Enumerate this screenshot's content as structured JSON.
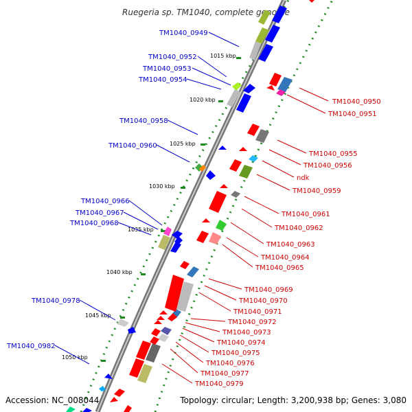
{
  "map": {
    "title": "Ruegeria sp. TM1040, complete genome",
    "footer_left": "Accession: NC_008044",
    "footer_right": "Topology: circular; Length: 3,200,938 bp; Genes: 3,080",
    "colors": {
      "forward_label": "#0000cc",
      "reverse_label": "#cc0000",
      "backbone": "#888888",
      "forward_feature": "#0000ff",
      "reverse_feature": "#ff0000"
    }
  },
  "ticks": [
    {
      "label": "1015 kbp"
    },
    {
      "label": "1020 kbp"
    },
    {
      "label": "1025 kbp"
    },
    {
      "label": "1030 kbp"
    },
    {
      "label": "1035 kbp"
    },
    {
      "label": "1040 kbp"
    },
    {
      "label": "1045 kbp"
    },
    {
      "label": "1050 kbp"
    }
  ],
  "genes_left": [
    {
      "label": "TM1040_0949"
    },
    {
      "label": "TM1040_0952"
    },
    {
      "label": "TM1040_0953"
    },
    {
      "label": "TM1040_0954"
    },
    {
      "label": "TM1040_0958"
    },
    {
      "label": "TM1040_0960"
    },
    {
      "label": "TM1040_0966"
    },
    {
      "label": "TM1040_0967"
    },
    {
      "label": "TM1040_0968"
    },
    {
      "label": "TM1040_0978"
    },
    {
      "label": "TM1040_0982"
    }
  ],
  "genes_right": [
    {
      "label": "TM1040_0950"
    },
    {
      "label": "TM1040_0951"
    },
    {
      "label": "TM1040_0955"
    },
    {
      "label": "TM1040_0956"
    },
    {
      "label": "ndk"
    },
    {
      "label": "TM1040_0959"
    },
    {
      "label": "TM1040_0961"
    },
    {
      "label": "TM1040_0962"
    },
    {
      "label": "TM1040_0963"
    },
    {
      "label": "TM1040_0964"
    },
    {
      "label": "TM1040_0965"
    },
    {
      "label": "TM1040_0969"
    },
    {
      "label": "TM1040_0970"
    },
    {
      "label": "TM1040_0971"
    },
    {
      "label": "TM1040_0972"
    },
    {
      "label": "TM1040_0973"
    },
    {
      "label": "TM1040_0974"
    },
    {
      "label": "TM1040_0975"
    },
    {
      "label": "TM1040_0976"
    },
    {
      "label": "TM1040_0977"
    },
    {
      "label": "TM1040_0979"
    }
  ]
}
